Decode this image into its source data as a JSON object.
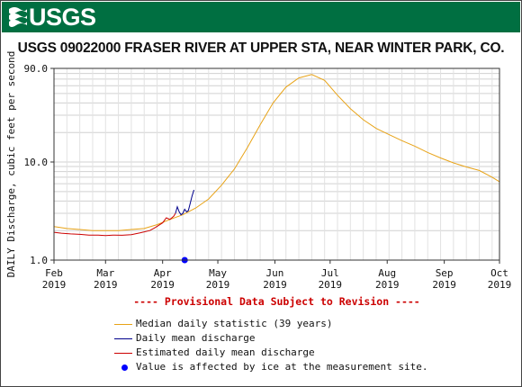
{
  "header": {
    "logo_text": "USGS",
    "colors": {
      "banner": "#006f41",
      "logo": "#ffffff"
    }
  },
  "chart_data": {
    "type": "line",
    "title": "USGS 09022000 FRASER RIVER AT UPPER STA, NEAR WINTER PARK, CO.",
    "ylabel": "DAILY Discharge, cubic feet per second",
    "y_scale": "log",
    "ylim": [
      1.0,
      90.0
    ],
    "y_ticks": [
      "1.0",
      "10.0",
      "90.0"
    ],
    "x_ticks": [
      {
        "month": "Feb",
        "year": "2019",
        "date": "2019-02-01"
      },
      {
        "month": "Mar",
        "year": "2019",
        "date": "2019-03-01"
      },
      {
        "month": "Apr",
        "year": "2019",
        "date": "2019-04-01"
      },
      {
        "month": "May",
        "year": "2019",
        "date": "2019-05-01"
      },
      {
        "month": "Jun",
        "year": "2019",
        "date": "2019-06-01"
      },
      {
        "month": "Jul",
        "year": "2019",
        "date": "2019-07-01"
      },
      {
        "month": "Aug",
        "year": "2019",
        "date": "2019-08-01"
      },
      {
        "month": "Sep",
        "year": "2019",
        "date": "2019-09-01"
      },
      {
        "month": "Oct",
        "year": "2019",
        "date": "2019-10-01"
      }
    ],
    "xlim": [
      "2019-02-01",
      "2019-10-01"
    ],
    "grid": true,
    "provisional_note": "---- Provisional Data Subject to Revision ----",
    "series": [
      {
        "name": "Median daily statistic (39 years)",
        "color": "#e8a317",
        "points": [
          [
            "2019-02-01",
            2.2
          ],
          [
            "2019-02-08",
            2.1
          ],
          [
            "2019-02-15",
            2.05
          ],
          [
            "2019-02-22",
            2.0
          ],
          [
            "2019-03-01",
            2.0
          ],
          [
            "2019-03-08",
            2.0
          ],
          [
            "2019-03-15",
            2.05
          ],
          [
            "2019-03-22",
            2.1
          ],
          [
            "2019-03-29",
            2.3
          ],
          [
            "2019-04-05",
            2.6
          ],
          [
            "2019-04-12",
            2.9
          ],
          [
            "2019-04-19",
            3.4
          ],
          [
            "2019-04-26",
            4.2
          ],
          [
            "2019-05-03",
            5.8
          ],
          [
            "2019-05-10",
            8.5
          ],
          [
            "2019-05-17",
            14
          ],
          [
            "2019-05-24",
            24
          ],
          [
            "2019-05-31",
            40
          ],
          [
            "2019-06-07",
            58
          ],
          [
            "2019-06-14",
            72
          ],
          [
            "2019-06-21",
            78
          ],
          [
            "2019-06-28",
            68
          ],
          [
            "2019-07-05",
            48
          ],
          [
            "2019-07-12",
            35
          ],
          [
            "2019-07-19",
            27
          ],
          [
            "2019-07-26",
            22
          ],
          [
            "2019-08-02",
            19
          ],
          [
            "2019-08-09",
            16.5
          ],
          [
            "2019-08-16",
            14.5
          ],
          [
            "2019-08-23",
            12.5
          ],
          [
            "2019-08-30",
            11
          ],
          [
            "2019-09-06",
            9.8
          ],
          [
            "2019-09-13",
            8.9
          ],
          [
            "2019-09-20",
            8.2
          ],
          [
            "2019-09-27",
            7.0
          ],
          [
            "2019-10-01",
            6.3
          ]
        ]
      },
      {
        "name": "Daily mean discharge",
        "color": "#00008b",
        "points": [
          [
            "2019-04-08",
            3.0
          ],
          [
            "2019-04-09",
            3.5
          ],
          [
            "2019-04-10",
            3.1
          ],
          [
            "2019-04-11",
            2.9
          ],
          [
            "2019-04-12",
            3.0
          ],
          [
            "2019-04-13",
            3.3
          ],
          [
            "2019-04-14",
            3.1
          ],
          [
            "2019-04-15",
            3.2
          ],
          [
            "2019-04-16",
            3.8
          ],
          [
            "2019-04-17",
            4.5
          ],
          [
            "2019-04-18",
            5.2
          ]
        ]
      },
      {
        "name": "Estimated daily mean discharge",
        "color": "#cc0000",
        "points": [
          [
            "2019-02-01",
            1.92
          ],
          [
            "2019-02-05",
            1.88
          ],
          [
            "2019-02-10",
            1.85
          ],
          [
            "2019-02-15",
            1.83
          ],
          [
            "2019-02-20",
            1.8
          ],
          [
            "2019-02-25",
            1.8
          ],
          [
            "2019-03-01",
            1.78
          ],
          [
            "2019-03-05",
            1.8
          ],
          [
            "2019-03-10",
            1.79
          ],
          [
            "2019-03-15",
            1.82
          ],
          [
            "2019-03-20",
            1.9
          ],
          [
            "2019-03-25",
            2.0
          ],
          [
            "2019-03-28",
            2.15
          ],
          [
            "2019-04-01",
            2.4
          ],
          [
            "2019-04-03",
            2.7
          ],
          [
            "2019-04-05",
            2.6
          ],
          [
            "2019-04-07",
            2.8
          ],
          [
            "2019-04-08",
            3.0
          ]
        ]
      }
    ],
    "ice_markers": {
      "name": "Value is affected by ice at the measurement site.",
      "color": "#0000ff",
      "points": [
        [
          "2019-04-13",
          1.0
        ]
      ]
    }
  }
}
